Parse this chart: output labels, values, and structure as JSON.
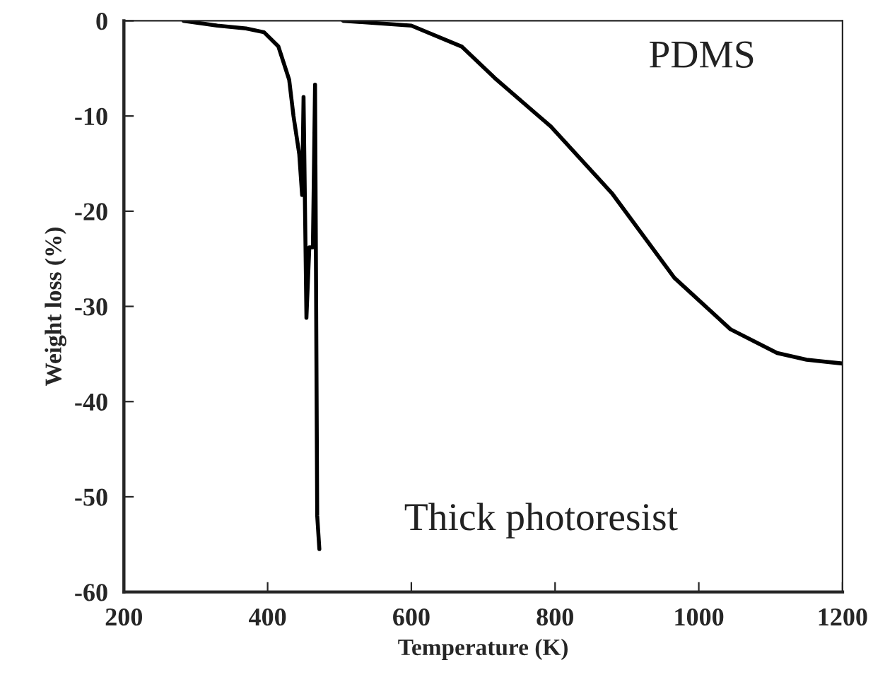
{
  "chart_data": {
    "type": "line",
    "xlabel": "Temperature (K)",
    "ylabel": "Weight loss (%)",
    "xlim": [
      200,
      1200
    ],
    "ylim": [
      -60,
      0
    ],
    "xticks": [
      200,
      400,
      600,
      800,
      1000,
      1200
    ],
    "yticks": [
      -60,
      -50,
      -40,
      -30,
      -20,
      -10,
      0
    ],
    "grid": false,
    "legend": false,
    "marker": "none",
    "line_style": "solid",
    "series": [
      {
        "name": "Thick photoresist",
        "color": "#000000",
        "x": [
          283,
          330,
          370,
          395,
          415,
          430,
          436,
          444,
          448,
          450,
          454,
          458,
          463,
          466,
          469,
          472
        ],
        "values": [
          0,
          -0.5,
          -0.8,
          -1.2,
          -2.7,
          -6.2,
          -10,
          -14,
          -18.3,
          -8,
          -31.2,
          -23.8,
          -23.8,
          -6.7,
          -52,
          -55.5
        ]
      },
      {
        "name": "PDMS",
        "color": "#000000",
        "x": [
          505,
          600,
          670,
          716,
          794,
          879,
          966,
          1044,
          1109,
          1150,
          1200
        ],
        "values": [
          0,
          -0.5,
          -2.7,
          -6,
          -11.1,
          -18.1,
          -27,
          -32.4,
          -34.9,
          -35.6,
          -36
        ]
      }
    ]
  }
}
